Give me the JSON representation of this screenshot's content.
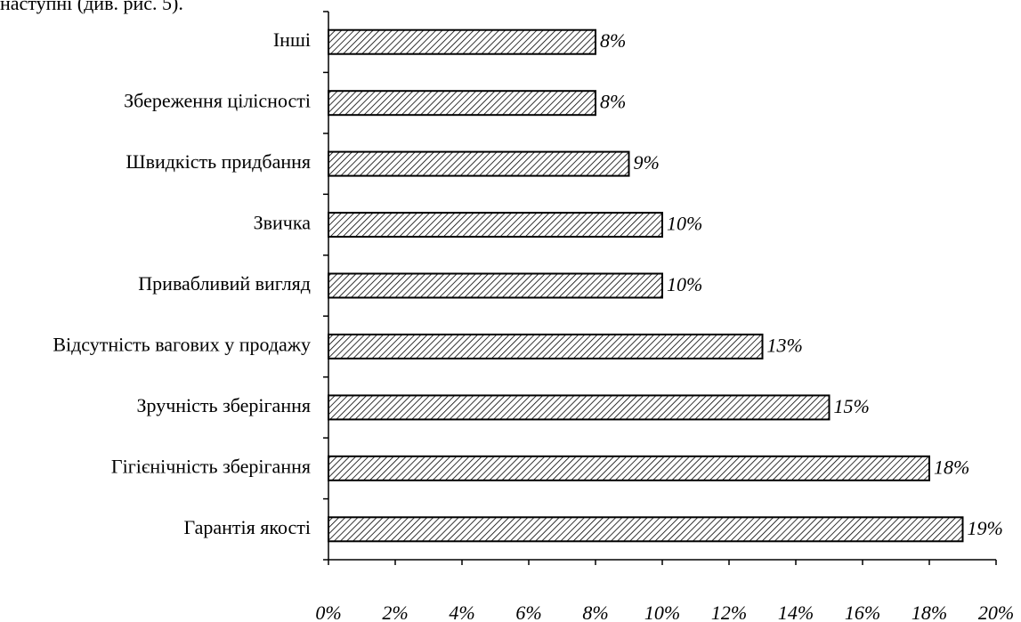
{
  "caption": "наступні (див. рис. 5).",
  "chart_data": {
    "type": "bar",
    "orientation": "horizontal",
    "categories": [
      "Гарантія якості",
      "Гігієнічність зберігання",
      "Зручність зберігання",
      "Відсутність вагових у продажу",
      "Привабливий вигляд",
      "Звичка",
      "Швидкість придбання",
      "Збереження цілісності",
      "Інші"
    ],
    "values": [
      19,
      18,
      15,
      13,
      10,
      10,
      9,
      8,
      8
    ],
    "value_labels": [
      "19%",
      "18%",
      "15%",
      "13%",
      "10%",
      "10%",
      "9%",
      "8%",
      "8%"
    ],
    "xlim": [
      0,
      20
    ],
    "x_ticks": [
      0,
      2,
      4,
      6,
      8,
      10,
      12,
      14,
      16,
      18,
      20
    ],
    "x_tick_labels": [
      "0%",
      "2%",
      "4%",
      "6%",
      "8%",
      "10%",
      "12%",
      "14%",
      "16%",
      "18%",
      "20%"
    ],
    "bar_fill": "diagonal-hatch",
    "grid": false,
    "legend": "none"
  }
}
